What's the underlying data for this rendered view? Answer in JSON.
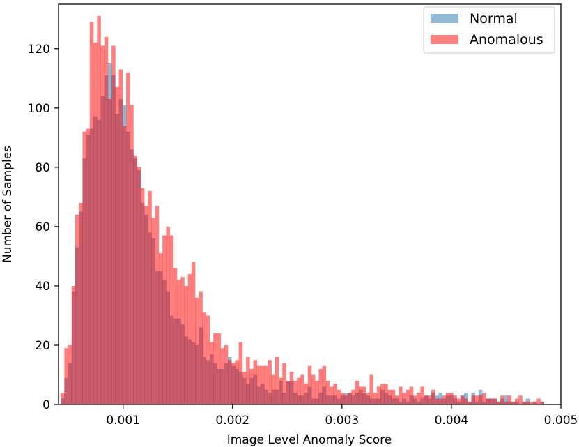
{
  "chart_data": {
    "type": "histogram",
    "xlabel": "Image Level Anomaly Score",
    "ylabel": "Number of Samples",
    "xlim": [
      0.00041,
      0.005
    ],
    "ylim": [
      0,
      135
    ],
    "xticks": [
      0.001,
      0.002,
      0.003,
      0.004,
      0.005
    ],
    "xtick_labels": [
      "0.001",
      "0.002",
      "0.003",
      "0.004",
      "0.005"
    ],
    "yticks": [
      0,
      20,
      40,
      60,
      80,
      100,
      120
    ],
    "ytick_labels": [
      "0",
      "20",
      "40",
      "60",
      "80",
      "100",
      "120"
    ],
    "grid": false,
    "legend_position": "top-right",
    "bin_start": 0.00043,
    "bin_width": 3.32e-05,
    "series": [
      {
        "name": "Normal",
        "color": "#1f77b4",
        "alpha": 0.5,
        "values": [
          2,
          9,
          14,
          38,
          53,
          65,
          83,
          91,
          93,
          97,
          96,
          104,
          111,
          115,
          111,
          98,
          103,
          101,
          92,
          86,
          83,
          79,
          68,
          64,
          58,
          56,
          45,
          45,
          42,
          38,
          30,
          29,
          29,
          27,
          23,
          22,
          21,
          20,
          26,
          16,
          15,
          17,
          14,
          12,
          12,
          14,
          16,
          13,
          12,
          11,
          9,
          7,
          9,
          10,
          6,
          7,
          5,
          4,
          5,
          5,
          8,
          4,
          8,
          8,
          4,
          3,
          3,
          4,
          6,
          2,
          2,
          4,
          6,
          3,
          3,
          3,
          2,
          3,
          4,
          4,
          3,
          4,
          5,
          4,
          3,
          2,
          2,
          2,
          5,
          4,
          3,
          2,
          2,
          1,
          2,
          1,
          3,
          2,
          1,
          2,
          3,
          2,
          4,
          3,
          4,
          2,
          3,
          3,
          2,
          1,
          3,
          4,
          1,
          4,
          1,
          5,
          1,
          2,
          2,
          2,
          1,
          2,
          3,
          1,
          1,
          1,
          0,
          1,
          2,
          0,
          1,
          0,
          1
        ]
      },
      {
        "name": "Anomalous",
        "color": "#ff0000",
        "alpha": 0.5,
        "values": [
          4,
          19,
          20,
          40,
          64,
          68,
          92,
          93,
          129,
          122,
          131,
          121,
          124,
          103,
          121,
          107,
          113,
          94,
          112,
          101,
          84,
          80,
          73,
          67,
          72,
          63,
          67,
          51,
          57,
          60,
          57,
          46,
          42,
          43,
          40,
          44,
          48,
          36,
          38,
          31,
          30,
          21,
          24,
          24,
          19,
          20,
          15,
          14,
          15,
          21,
          11,
          16,
          12,
          15,
          13,
          13,
          13,
          15,
          10,
          16,
          9,
          14,
          8,
          11,
          8,
          9,
          10,
          7,
          13,
          10,
          8,
          12,
          13,
          8,
          6,
          7,
          5,
          4,
          3,
          4,
          5,
          8,
          6,
          6,
          4,
          10,
          4,
          6,
          7,
          7,
          5,
          5,
          3,
          6,
          4,
          5,
          6,
          3,
          4,
          6,
          3,
          3,
          5,
          2,
          2,
          3,
          4,
          4,
          3,
          2,
          3,
          2,
          1,
          3,
          3,
          3,
          4,
          2,
          2,
          2,
          1,
          3,
          1,
          3,
          1,
          2,
          3,
          1,
          1,
          1,
          1,
          2,
          1
        ]
      }
    ]
  }
}
